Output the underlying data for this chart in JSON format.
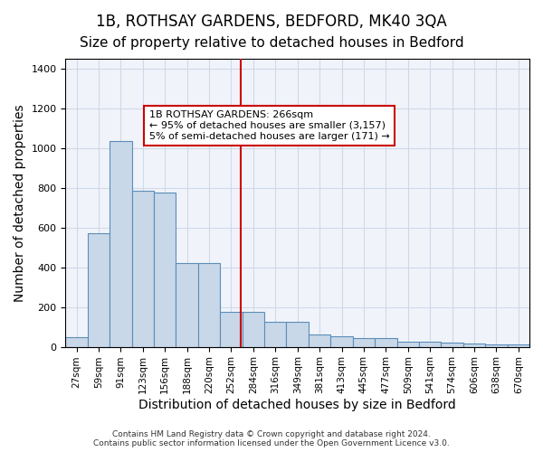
{
  "title1": "1B, ROTHSAY GARDENS, BEDFORD, MK40 3QA",
  "title2": "Size of property relative to detached houses in Bedford",
  "xlabel": "Distribution of detached houses by size in Bedford",
  "ylabel": "Number of detached properties",
  "categories": [
    "27sqm",
    "59sqm",
    "91sqm",
    "123sqm",
    "156sqm",
    "188sqm",
    "220sqm",
    "252sqm",
    "284sqm",
    "316sqm",
    "349sqm",
    "381sqm",
    "413sqm",
    "445sqm",
    "477sqm",
    "509sqm",
    "541sqm",
    "574sqm",
    "606sqm",
    "638sqm",
    "670sqm"
  ],
  "values": [
    50,
    570,
    1035,
    785,
    775,
    420,
    420,
    175,
    175,
    125,
    125,
    60,
    55,
    45,
    45,
    25,
    25,
    20,
    15,
    10,
    10
  ],
  "bar_color": "#c8d8e8",
  "bar_edge_color": "#5b8db8",
  "bar_width": 1.0,
  "vline_x": 8.67,
  "vline_color": "#cc0000",
  "annotation_text": "1B ROTHSAY GARDENS: 266sqm\n← 95% of detached houses are smaller (3,157)\n5% of semi-detached houses are larger (171) →",
  "annotation_box_color": "#ffffff",
  "annotation_box_edge": "#cc0000",
  "ylim": [
    0,
    1450
  ],
  "yticks": [
    0,
    200,
    400,
    600,
    800,
    1000,
    1200,
    1400
  ],
  "grid_color": "#d0d8e8",
  "bg_color": "#f0f4fa",
  "footer": "Contains HM Land Registry data © Crown copyright and database right 2024.\nContains public sector information licensed under the Open Government Licence v3.0.",
  "title1_fontsize": 12,
  "title2_fontsize": 11,
  "xlabel_fontsize": 10,
  "ylabel_fontsize": 10
}
